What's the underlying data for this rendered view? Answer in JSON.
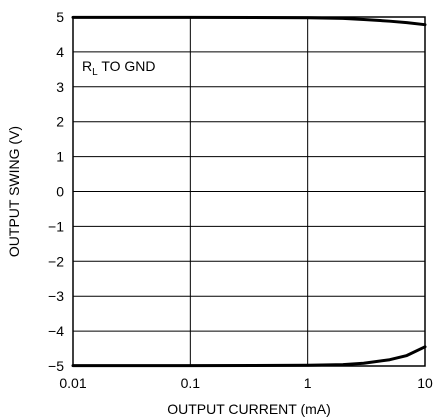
{
  "chart_data": {
    "type": "line",
    "xlabel": "OUTPUT CURRENT (mA)",
    "ylabel": "OUTPUT SWING (V)",
    "xscale": "log",
    "xlim": [
      0.01,
      10
    ],
    "ylim": [
      -5,
      5
    ],
    "xticks": [
      0.01,
      0.1,
      1,
      10
    ],
    "xtick_labels": [
      "0.01",
      "0.1",
      "1",
      "10"
    ],
    "yticks": [
      5,
      4,
      3,
      2,
      1,
      0,
      -1,
      -2,
      -3,
      -4,
      -5
    ],
    "ytick_labels": [
      "5",
      "4",
      "3",
      "2",
      "1",
      "0",
      "−1",
      "−2",
      "−3",
      "−4",
      "−5"
    ],
    "grid": true,
    "annotation": {
      "main": "R",
      "sub": "L",
      "rest": " TO GND"
    },
    "series": [
      {
        "x": [
          0.01,
          0.1,
          1,
          2,
          3,
          5,
          7,
          10
        ],
        "y": [
          4.99,
          4.99,
          4.98,
          4.96,
          4.93,
          4.88,
          4.84,
          4.78
        ]
      },
      {
        "x": [
          0.01,
          0.1,
          1,
          2,
          3,
          5,
          7,
          10
        ],
        "y": [
          -4.99,
          -4.99,
          -4.98,
          -4.96,
          -4.92,
          -4.82,
          -4.7,
          -4.45
        ]
      }
    ]
  }
}
